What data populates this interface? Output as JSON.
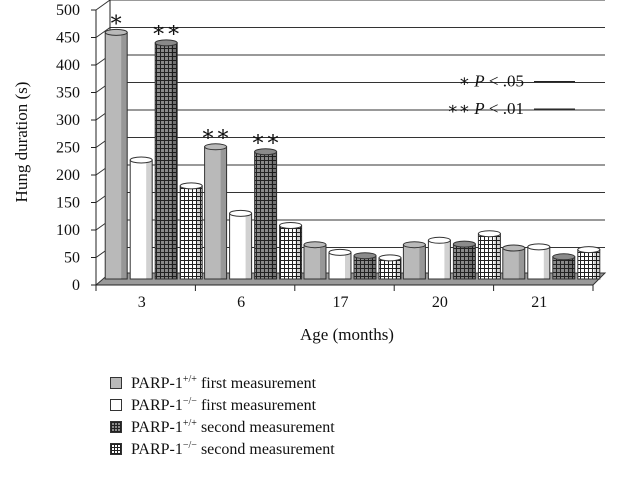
{
  "chart_data": {
    "type": "bar",
    "title": "",
    "xlabel": "Age (months)",
    "ylabel": "Hung duration (s)",
    "ylim": [
      0,
      500
    ],
    "yticks": [
      0,
      50,
      100,
      150,
      200,
      250,
      300,
      350,
      400,
      450,
      500
    ],
    "categories": [
      "3",
      "6",
      "17",
      "20",
      "21"
    ],
    "series": [
      {
        "name": "PARP-1+/+ first measurement",
        "legend_base": "PARP-1",
        "legend_sup": "+/+",
        "legend_rest": " first measurement",
        "values": [
          452,
          244,
          66,
          66,
          60
        ],
        "fill": "#b9b9b9",
        "pattern": "none"
      },
      {
        "name": "PARP-1−/− first measurement",
        "legend_base": "PARP-1",
        "legend_sup": "−/−",
        "legend_rest": " first measurement",
        "values": [
          220,
          123,
          52,
          74,
          62
        ],
        "fill": "#ffffff",
        "pattern": "none"
      },
      {
        "name": "PARP-1+/+ second measurement",
        "legend_base": "PARP-1",
        "legend_sup": "+/+",
        "legend_rest": " second measurement",
        "values": [
          433,
          235,
          46,
          67,
          44
        ],
        "fill": "#8a8a8a",
        "pattern": "grid"
      },
      {
        "name": "PARP-1−/− second measurement",
        "legend_base": "PARP-1",
        "legend_sup": "−/−",
        "legend_rest": " second measurement",
        "values": [
          173,
          101,
          42,
          86,
          57
        ],
        "fill": "#ffffff",
        "pattern": "grid"
      }
    ],
    "significance": [
      {
        "category": "3",
        "series": 0,
        "marker": "∗"
      },
      {
        "category": "3",
        "series": 2,
        "marker": "∗∗"
      },
      {
        "category": "6",
        "series": 0,
        "marker": "∗∗"
      },
      {
        "category": "6",
        "series": 2,
        "marker": "∗∗"
      }
    ],
    "annotations": [
      {
        "prefix": "∗",
        "text": " P < .05",
        "y": 370
      },
      {
        "prefix": "∗∗",
        "text": " P < .01",
        "y": 320
      }
    ],
    "grid": true,
    "legend_position": "bottom"
  }
}
